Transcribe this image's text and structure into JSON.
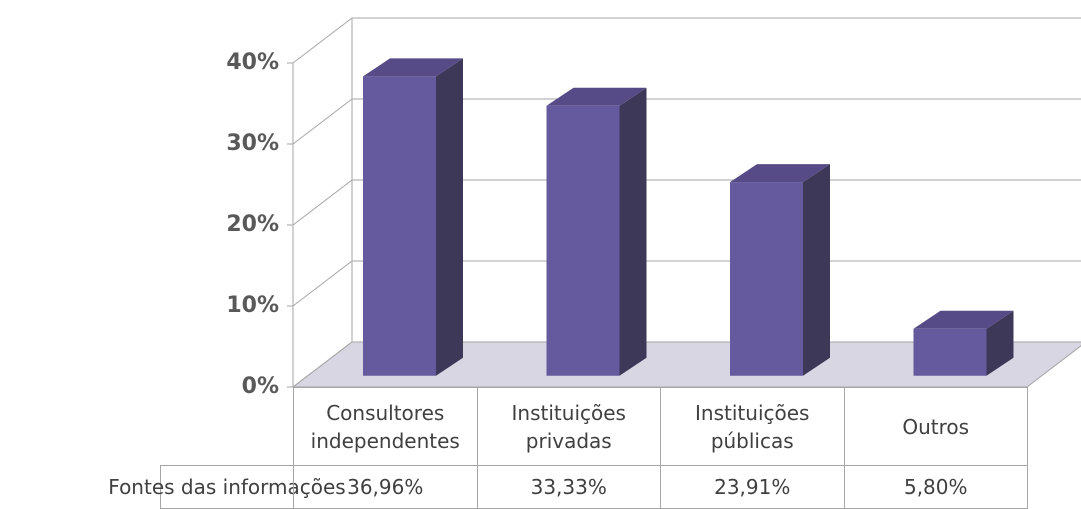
{
  "chart_data": {
    "type": "bar3d",
    "categories": [
      "Consultores independentes",
      "Instituições privadas",
      "Instituições públicas",
      "Outros"
    ],
    "series": [
      {
        "name": "Fontes das informações",
        "color": "#665a9e",
        "values": [
          36.96,
          33.33,
          23.91,
          5.8
        ],
        "value_labels": [
          "36,96%",
          "33,33%",
          "23,91%",
          "5,80%"
        ]
      }
    ],
    "ylim": [
      0,
      40
    ],
    "yticks": [
      {
        "value": 0,
        "label": "0%"
      },
      {
        "value": 10,
        "label": "10%"
      },
      {
        "value": 20,
        "label": "20%"
      },
      {
        "value": 30,
        "label": "30%"
      },
      {
        "value": 40,
        "label": "40%"
      }
    ],
    "grid": true
  }
}
